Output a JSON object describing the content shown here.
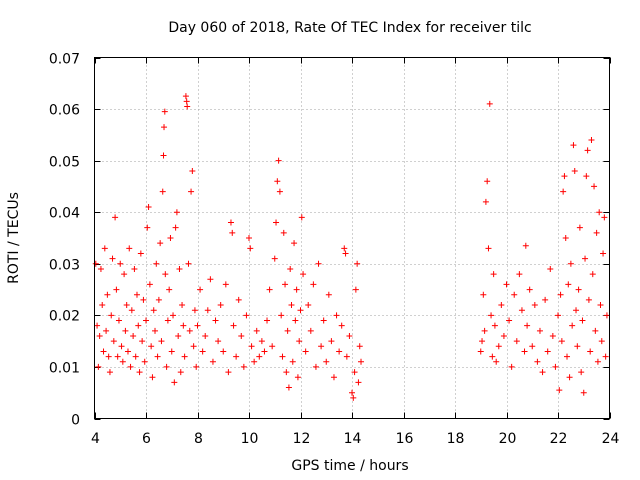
{
  "chart_data": {
    "type": "scatter",
    "title": "Day 060 of 2018, Rate Of TEC Index for receiver tilc",
    "xlabel": "GPS time / hours",
    "ylabel": "ROTI / TECUs",
    "xlim": [
      4,
      24
    ],
    "ylim": [
      0,
      0.07
    ],
    "xticks": [
      4,
      6,
      8,
      10,
      12,
      14,
      16,
      18,
      20,
      22,
      24
    ],
    "yticks": [
      0,
      0.01,
      0.02,
      0.03,
      0.04,
      0.05,
      0.06,
      0.07
    ],
    "xtick_labels": [
      "4",
      "6",
      "8",
      "10",
      "12",
      "14",
      "16",
      "18",
      "20",
      "22",
      "24"
    ],
    "ytick_labels": [
      "0",
      "0.01",
      "0.02",
      "0.03",
      "0.04",
      "0.05",
      "0.06",
      "0.07"
    ],
    "grid": true,
    "marker": "+",
    "color": "#ff0000",
    "series": [
      {
        "name": "ROTI",
        "points": [
          [
            4.05,
            0.03
          ],
          [
            4.1,
            0.018
          ],
          [
            4.15,
            0.01
          ],
          [
            4.2,
            0.016
          ],
          [
            4.25,
            0.029
          ],
          [
            4.3,
            0.022
          ],
          [
            4.35,
            0.013
          ],
          [
            4.4,
            0.033
          ],
          [
            4.45,
            0.017
          ],
          [
            4.5,
            0.024
          ],
          [
            4.55,
            0.012
          ],
          [
            4.6,
            0.009
          ],
          [
            4.65,
            0.02
          ],
          [
            4.7,
            0.031
          ],
          [
            4.75,
            0.015
          ],
          [
            4.8,
            0.039
          ],
          [
            4.85,
            0.025
          ],
          [
            4.9,
            0.012
          ],
          [
            4.95,
            0.019
          ],
          [
            5.0,
            0.03
          ],
          [
            5.05,
            0.014
          ],
          [
            5.1,
            0.011
          ],
          [
            5.15,
            0.028
          ],
          [
            5.2,
            0.017
          ],
          [
            5.25,
            0.022
          ],
          [
            5.3,
            0.013
          ],
          [
            5.35,
            0.033
          ],
          [
            5.4,
            0.01
          ],
          [
            5.45,
            0.021
          ],
          [
            5.5,
            0.016
          ],
          [
            5.55,
            0.029
          ],
          [
            5.6,
            0.012
          ],
          [
            5.65,
            0.024
          ],
          [
            5.7,
            0.018
          ],
          [
            5.75,
            0.009
          ],
          [
            5.8,
            0.032
          ],
          [
            5.85,
            0.015
          ],
          [
            5.9,
            0.023
          ],
          [
            5.95,
            0.011
          ],
          [
            6.0,
            0.019
          ],
          [
            6.05,
            0.037
          ],
          [
            6.1,
            0.041
          ],
          [
            6.15,
            0.026
          ],
          [
            6.2,
            0.014
          ],
          [
            6.25,
            0.008
          ],
          [
            6.3,
            0.021
          ],
          [
            6.35,
            0.017
          ],
          [
            6.4,
            0.03
          ],
          [
            6.45,
            0.012
          ],
          [
            6.5,
            0.023
          ],
          [
            6.55,
            0.034
          ],
          [
            6.6,
            0.015
          ],
          [
            6.65,
            0.044
          ],
          [
            6.68,
            0.051
          ],
          [
            6.7,
            0.0565
          ],
          [
            6.73,
            0.0595
          ],
          [
            6.75,
            0.028
          ],
          [
            6.8,
            0.01
          ],
          [
            6.85,
            0.019
          ],
          [
            6.9,
            0.025
          ],
          [
            6.95,
            0.035
          ],
          [
            7.0,
            0.013
          ],
          [
            7.05,
            0.02
          ],
          [
            7.1,
            0.007
          ],
          [
            7.15,
            0.037
          ],
          [
            7.2,
            0.04
          ],
          [
            7.25,
            0.016
          ],
          [
            7.3,
            0.029
          ],
          [
            7.35,
            0.009
          ],
          [
            7.4,
            0.022
          ],
          [
            7.45,
            0.018
          ],
          [
            7.5,
            0.012
          ],
          [
            7.55,
            0.0625
          ],
          [
            7.58,
            0.0615
          ],
          [
            7.6,
            0.0605
          ],
          [
            7.65,
            0.03
          ],
          [
            7.7,
            0.017
          ],
          [
            7.75,
            0.044
          ],
          [
            7.8,
            0.048
          ],
          [
            7.85,
            0.014
          ],
          [
            7.9,
            0.021
          ],
          [
            7.95,
            0.01
          ],
          [
            8.0,
            0.018
          ],
          [
            8.1,
            0.025
          ],
          [
            8.2,
            0.013
          ],
          [
            8.3,
            0.016
          ],
          [
            8.4,
            0.021
          ],
          [
            8.5,
            0.027
          ],
          [
            8.6,
            0.011
          ],
          [
            8.7,
            0.019
          ],
          [
            8.8,
            0.015
          ],
          [
            8.9,
            0.022
          ],
          [
            9.0,
            0.013
          ],
          [
            9.1,
            0.026
          ],
          [
            9.2,
            0.009
          ],
          [
            9.3,
            0.038
          ],
          [
            9.35,
            0.036
          ],
          [
            9.4,
            0.018
          ],
          [
            9.5,
            0.012
          ],
          [
            9.6,
            0.023
          ],
          [
            9.7,
            0.016
          ],
          [
            9.8,
            0.01
          ],
          [
            9.9,
            0.02
          ],
          [
            10.0,
            0.035
          ],
          [
            10.05,
            0.033
          ],
          [
            10.1,
            0.014
          ],
          [
            10.2,
            0.011
          ],
          [
            10.3,
            0.017
          ],
          [
            10.4,
            0.012
          ],
          [
            10.5,
            0.015
          ],
          [
            10.6,
            0.013
          ],
          [
            10.7,
            0.019
          ],
          [
            10.8,
            0.025
          ],
          [
            10.9,
            0.014
          ],
          [
            11.0,
            0.031
          ],
          [
            11.05,
            0.038
          ],
          [
            11.1,
            0.046
          ],
          [
            11.15,
            0.05
          ],
          [
            11.2,
            0.044
          ],
          [
            11.25,
            0.02
          ],
          [
            11.3,
            0.012
          ],
          [
            11.35,
            0.036
          ],
          [
            11.4,
            0.026
          ],
          [
            11.45,
            0.009
          ],
          [
            11.5,
            0.017
          ],
          [
            11.55,
            0.006
          ],
          [
            11.6,
            0.029
          ],
          [
            11.65,
            0.022
          ],
          [
            11.7,
            0.011
          ],
          [
            11.75,
            0.034
          ],
          [
            11.8,
            0.019
          ],
          [
            11.85,
            0.025
          ],
          [
            11.9,
            0.008
          ],
          [
            11.95,
            0.015
          ],
          [
            12.0,
            0.021
          ],
          [
            12.05,
            0.039
          ],
          [
            12.1,
            0.028
          ],
          [
            12.2,
            0.013
          ],
          [
            12.3,
            0.022
          ],
          [
            12.4,
            0.017
          ],
          [
            12.5,
            0.026
          ],
          [
            12.6,
            0.01
          ],
          [
            12.7,
            0.03
          ],
          [
            12.8,
            0.014
          ],
          [
            12.9,
            0.019
          ],
          [
            13.0,
            0.011
          ],
          [
            13.1,
            0.024
          ],
          [
            13.2,
            0.015
          ],
          [
            13.3,
            0.008
          ],
          [
            13.4,
            0.02
          ],
          [
            13.5,
            0.013
          ],
          [
            13.6,
            0.018
          ],
          [
            13.7,
            0.033
          ],
          [
            13.75,
            0.032
          ],
          [
            13.8,
            0.012
          ],
          [
            13.9,
            0.016
          ],
          [
            14.0,
            0.005
          ],
          [
            14.05,
            0.004
          ],
          [
            14.1,
            0.009
          ],
          [
            14.15,
            0.025
          ],
          [
            14.2,
            0.03
          ],
          [
            14.25,
            0.007
          ],
          [
            14.3,
            0.014
          ],
          [
            14.35,
            0.011
          ],
          [
            19.0,
            0.013
          ],
          [
            19.05,
            0.015
          ],
          [
            19.1,
            0.024
          ],
          [
            19.15,
            0.017
          ],
          [
            19.2,
            0.042
          ],
          [
            19.25,
            0.046
          ],
          [
            19.3,
            0.033
          ],
          [
            19.35,
            0.061
          ],
          [
            19.4,
            0.02
          ],
          [
            19.45,
            0.012
          ],
          [
            19.5,
            0.028
          ],
          [
            19.55,
            0.018
          ],
          [
            19.6,
            0.011
          ],
          [
            19.7,
            0.014
          ],
          [
            19.8,
            0.022
          ],
          [
            19.9,
            0.016
          ],
          [
            20.0,
            0.026
          ],
          [
            20.1,
            0.019
          ],
          [
            20.2,
            0.01
          ],
          [
            20.3,
            0.024
          ],
          [
            20.4,
            0.015
          ],
          [
            20.5,
            0.028
          ],
          [
            20.6,
            0.021
          ],
          [
            20.7,
            0.013
          ],
          [
            20.75,
            0.0335
          ],
          [
            20.8,
            0.018
          ],
          [
            20.9,
            0.025
          ],
          [
            21.0,
            0.014
          ],
          [
            21.1,
            0.022
          ],
          [
            21.2,
            0.011
          ],
          [
            21.3,
            0.017
          ],
          [
            21.4,
            0.009
          ],
          [
            21.5,
            0.023
          ],
          [
            21.6,
            0.013
          ],
          [
            21.7,
            0.029
          ],
          [
            21.8,
            0.016
          ],
          [
            21.9,
            0.01
          ],
          [
            22.0,
            0.02
          ],
          [
            22.05,
            0.0055
          ],
          [
            22.1,
            0.024
          ],
          [
            22.15,
            0.015
          ],
          [
            22.2,
            0.044
          ],
          [
            22.25,
            0.047
          ],
          [
            22.3,
            0.035
          ],
          [
            22.35,
            0.012
          ],
          [
            22.4,
            0.026
          ],
          [
            22.45,
            0.008
          ],
          [
            22.5,
            0.03
          ],
          [
            22.55,
            0.018
          ],
          [
            22.6,
            0.053
          ],
          [
            22.65,
            0.048
          ],
          [
            22.7,
            0.021
          ],
          [
            22.75,
            0.014
          ],
          [
            22.8,
            0.025
          ],
          [
            22.85,
            0.037
          ],
          [
            22.9,
            0.009
          ],
          [
            22.95,
            0.019
          ],
          [
            23.0,
            0.005
          ],
          [
            23.05,
            0.031
          ],
          [
            23.1,
            0.047
          ],
          [
            23.15,
            0.052
          ],
          [
            23.2,
            0.023
          ],
          [
            23.25,
            0.013
          ],
          [
            23.3,
            0.054
          ],
          [
            23.35,
            0.028
          ],
          [
            23.4,
            0.045
          ],
          [
            23.45,
            0.017
          ],
          [
            23.5,
            0.036
          ],
          [
            23.55,
            0.011
          ],
          [
            23.6,
            0.04
          ],
          [
            23.65,
            0.022
          ],
          [
            23.7,
            0.015
          ],
          [
            23.75,
            0.032
          ],
          [
            23.8,
            0.039
          ],
          [
            23.85,
            0.012
          ],
          [
            23.9,
            0.02
          ]
        ]
      }
    ]
  }
}
